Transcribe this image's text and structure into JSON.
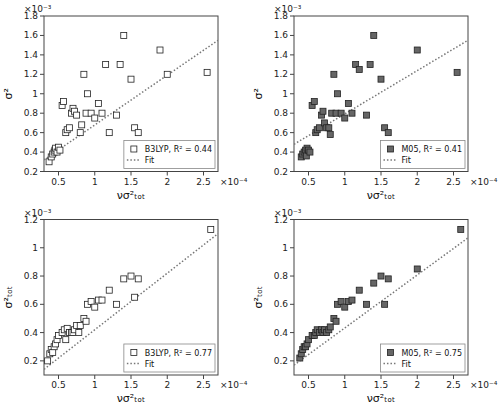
{
  "chart_data": [
    {
      "type": "scatter",
      "x_label": "νσ²ₜₒₜ",
      "y_label": "σ²",
      "annotations": [
        "×10⁻³",
        "×10⁻⁴"
      ],
      "xlim": [
        3e-05,
        0.00027
      ],
      "ylim": [
        0.0002,
        0.0018
      ],
      "xticks": [
        {
          "value": 5e-05,
          "label": "0.5"
        },
        {
          "value": 0.0001,
          "label": "1"
        },
        {
          "value": 0.00015,
          "label": "1.5"
        },
        {
          "value": 0.0002,
          "label": "2"
        },
        {
          "value": 0.00025,
          "label": "2.5"
        }
      ],
      "yticks": [
        {
          "value": 0.0002,
          "label": "0.2"
        },
        {
          "value": 0.0004,
          "label": "0.4"
        },
        {
          "value": 0.0006,
          "label": "0.6"
        },
        {
          "value": 0.0008,
          "label": "0.8"
        },
        {
          "value": 0.001,
          "label": "1"
        },
        {
          "value": 0.0012,
          "label": "1.2"
        },
        {
          "value": 0.0014,
          "label": "1.4"
        },
        {
          "value": 0.0016,
          "label": "1.6"
        },
        {
          "value": 0.0018,
          "label": "1.8"
        }
      ],
      "grid": false,
      "legend": "lower right",
      "series": [
        {
          "name": "B3LYP, R² = 0.44",
          "type": "scatter",
          "marker": "square",
          "color": "white",
          "x": [
            3.7e-05,
            4e-05,
            4.2e-05,
            4.4e-05,
            4.5e-05,
            4.6e-05,
            4.8e-05,
            5e-05,
            5.2e-05,
            5.5e-05,
            5.7e-05,
            6e-05,
            6.2e-05,
            6.5e-05,
            6.8e-05,
            7e-05,
            7.2e-05,
            7.5e-05,
            8e-05,
            8.2e-05,
            8.5e-05,
            8.8e-05,
            9e-05,
            9.5e-05,
            0.0001,
            0.000105,
            0.00011,
            0.000115,
            0.00012,
            0.00013,
            0.000135,
            0.00014,
            0.00015,
            0.000155,
            0.00016,
            0.00019,
            0.0002,
            0.000255
          ],
          "values": [
            0.0003,
            0.00035,
            0.00038,
            0.0004,
            0.00042,
            0.00044,
            0.0004,
            0.00045,
            0.00042,
            0.00088,
            0.00092,
            0.0006,
            0.00063,
            0.00065,
            0.0008,
            0.00085,
            0.00082,
            0.00078,
            0.0006,
            0.00068,
            0.0012,
            0.0008,
            0.001,
            0.0008,
            0.00075,
            0.0009,
            0.0008,
            0.0013,
            0.0006,
            0.00078,
            0.0013,
            0.0016,
            0.00115,
            0.00065,
            0.0006,
            0.00145,
            0.0012,
            0.00122
          ]
        },
        {
          "name": "Fit",
          "type": "line",
          "line_style": "dotted",
          "color": "#777777",
          "x": [
            3e-05,
            0.00027
          ],
          "values": [
            0.00032,
            0.00155
          ]
        }
      ]
    },
    {
      "type": "scatter",
      "x_label": "νσ²ₜₒₜ",
      "y_label": "σ²",
      "annotations": [
        "×10⁻³",
        "×10⁻⁴"
      ],
      "xlim": [
        3e-05,
        0.00027
      ],
      "ylim": [
        0.0002,
        0.0018
      ],
      "xticks": [
        {
          "value": 5e-05,
          "label": "0.5"
        },
        {
          "value": 0.0001,
          "label": "1"
        },
        {
          "value": 0.00015,
          "label": "1.5"
        },
        {
          "value": 0.0002,
          "label": "2"
        },
        {
          "value": 0.00025,
          "label": "2.5"
        }
      ],
      "yticks": [
        {
          "value": 0.0002,
          "label": "0.2"
        },
        {
          "value": 0.0004,
          "label": "0.4"
        },
        {
          "value": 0.0006,
          "label": "0.6"
        },
        {
          "value": 0.0008,
          "label": "0.8"
        },
        {
          "value": 0.001,
          "label": "1"
        },
        {
          "value": 0.0012,
          "label": "1.2"
        },
        {
          "value": 0.0014,
          "label": "1.4"
        },
        {
          "value": 0.0016,
          "label": "1.6"
        },
        {
          "value": 0.0018,
          "label": "1.8"
        }
      ],
      "grid": false,
      "legend": "lower right",
      "series": [
        {
          "name": "M05, R² = 0.41",
          "type": "scatter",
          "marker": "square",
          "color": "#666666",
          "x": [
            4e-05,
            4.2e-05,
            4.4e-05,
            4.6e-05,
            4.7e-05,
            4.8e-05,
            5e-05,
            5.2e-05,
            5.5e-05,
            5.8e-05,
            6e-05,
            6.2e-05,
            6.5e-05,
            6.8e-05,
            7e-05,
            7.2e-05,
            7.5e-05,
            7.8e-05,
            8e-05,
            8.2e-05,
            8.5e-05,
            8.8e-05,
            9e-05,
            9.5e-05,
            0.0001,
            0.000105,
            0.00011,
            0.000115,
            0.00012,
            0.00013,
            0.000135,
            0.00014,
            0.00015,
            0.000155,
            0.00016,
            0.0002,
            0.000255
          ],
          "values": [
            0.00035,
            0.00038,
            0.0004,
            0.00042,
            0.00036,
            0.00044,
            0.00042,
            0.0004,
            0.00088,
            0.00092,
            0.0006,
            0.00063,
            0.00065,
            0.00078,
            0.00082,
            0.0007,
            0.00065,
            0.00065,
            0.00058,
            0.0008,
            0.0012,
            0.0008,
            0.001,
            0.0008,
            0.00075,
            0.0009,
            0.0008,
            0.0013,
            0.00125,
            0.00078,
            0.0013,
            0.0016,
            0.00115,
            0.00065,
            0.0006,
            0.00145,
            0.00122
          ]
        },
        {
          "name": "Fit",
          "type": "line",
          "line_style": "dotted",
          "color": "#777777",
          "x": [
            3e-05,
            0.00027
          ],
          "values": [
            0.00048,
            0.00155
          ]
        }
      ]
    },
    {
      "type": "scatter",
      "x_label": "νσ²ₜₒₜ",
      "y_label": "σ²ₜₒₜ",
      "annotations": [
        "×10⁻³",
        "×10⁻⁴"
      ],
      "xlim": [
        3e-05,
        0.00027
      ],
      "ylim": [
        0.0001,
        0.0012
      ],
      "xticks": [
        {
          "value": 5e-05,
          "label": "0.5"
        },
        {
          "value": 0.0001,
          "label": "1"
        },
        {
          "value": 0.00015,
          "label": "1.5"
        },
        {
          "value": 0.0002,
          "label": "2"
        },
        {
          "value": 0.00025,
          "label": "2.5"
        }
      ],
      "yticks": [
        {
          "value": 0.0002,
          "label": "0.2"
        },
        {
          "value": 0.0004,
          "label": "0.4"
        },
        {
          "value": 0.0006,
          "label": "0.6"
        },
        {
          "value": 0.0008,
          "label": "0.8"
        },
        {
          "value": 0.001,
          "label": "1"
        },
        {
          "value": 0.0012,
          "label": "1.2"
        }
      ],
      "grid": false,
      "legend": "lower right",
      "series": [
        {
          "name": "B3LYP, R² = 0.77",
          "type": "scatter",
          "marker": "square",
          "color": "white",
          "x": [
            3.5e-05,
            3.8e-05,
            4e-05,
            4.2e-05,
            4.4e-05,
            4.6e-05,
            4.8e-05,
            5e-05,
            5.5e-05,
            5.8e-05,
            6e-05,
            6.2e-05,
            6.5e-05,
            6.8e-05,
            7e-05,
            7.2e-05,
            7.5e-05,
            7.8e-05,
            8e-05,
            8.5e-05,
            8.8e-05,
            9e-05,
            9.5e-05,
            0.0001,
            0.000105,
            0.00011,
            0.00012,
            0.00013,
            0.00014,
            0.00015,
            0.000155,
            0.00016,
            0.00026
          ],
          "values": [
            0.0002,
            0.00025,
            0.00028,
            0.00026,
            0.0003,
            0.00032,
            0.00035,
            0.00038,
            0.0004,
            0.00042,
            0.00035,
            0.00043,
            0.0004,
            0.0004,
            0.0004,
            0.00042,
            0.00045,
            0.0004,
            0.00045,
            0.0005,
            0.00048,
            0.0006,
            0.00062,
            0.00058,
            0.00063,
            0.00063,
            0.0007,
            0.0006,
            0.00078,
            0.0008,
            0.00065,
            0.00078,
            0.00113
          ]
        },
        {
          "name": "Fit",
          "type": "line",
          "line_style": "dotted",
          "color": "#777777",
          "x": [
            3e-05,
            0.00027
          ],
          "values": [
            0.00014,
            0.0011
          ]
        }
      ]
    },
    {
      "type": "scatter",
      "x_label": "νσ²ₜₒₜ",
      "y_label": "σ²ₜₒₜ",
      "annotations": [
        "×10⁻³",
        "×10⁻⁴"
      ],
      "xlim": [
        3e-05,
        0.00027
      ],
      "ylim": [
        0.0001,
        0.0012
      ],
      "xticks": [
        {
          "value": 5e-05,
          "label": "0.5"
        },
        {
          "value": 0.0001,
          "label": "1"
        },
        {
          "value": 0.00015,
          "label": "1.5"
        },
        {
          "value": 0.0002,
          "label": "2"
        },
        {
          "value": 0.00025,
          "label": "2.5"
        }
      ],
      "yticks": [
        {
          "value": 0.0002,
          "label": "0.2"
        },
        {
          "value": 0.0004,
          "label": "0.4"
        },
        {
          "value": 0.0006,
          "label": "0.6"
        },
        {
          "value": 0.0008,
          "label": "0.8"
        },
        {
          "value": 0.001,
          "label": "1"
        },
        {
          "value": 0.0012,
          "label": "1.2"
        }
      ],
      "grid": false,
      "legend": "lower right",
      "series": [
        {
          "name": "M05, R² = 0.75",
          "type": "scatter",
          "marker": "square",
          "color": "#666666",
          "x": [
            3.8e-05,
            4e-05,
            4.2e-05,
            4.4e-05,
            4.6e-05,
            4.8e-05,
            5e-05,
            5.5e-05,
            5.8e-05,
            6e-05,
            6.2e-05,
            6.5e-05,
            6.8e-05,
            7e-05,
            7.2e-05,
            7.5e-05,
            7.8e-05,
            8e-05,
            8.5e-05,
            8.8e-05,
            9e-05,
            9.5e-05,
            0.0001,
            0.000105,
            0.00011,
            0.00012,
            0.00013,
            0.00014,
            0.00015,
            0.000155,
            0.00016,
            0.0002,
            0.00026
          ],
          "values": [
            0.00022,
            0.00025,
            0.00028,
            0.0003,
            0.0003,
            0.00032,
            0.00035,
            0.00038,
            0.00038,
            0.0004,
            0.00042,
            0.0004,
            0.00042,
            0.0004,
            0.00042,
            0.0004,
            0.00042,
            0.00044,
            0.0005,
            0.00048,
            0.0006,
            0.00062,
            0.00058,
            0.00062,
            0.00063,
            0.0007,
            0.0006,
            0.00075,
            0.0008,
            0.0006,
            0.00078,
            0.00085,
            0.00113
          ]
        },
        {
          "name": "Fit",
          "type": "line",
          "line_style": "dotted",
          "color": "#777777",
          "x": [
            3e-05,
            0.00027
          ],
          "values": [
            0.00017,
            0.00107
          ]
        }
      ]
    }
  ]
}
